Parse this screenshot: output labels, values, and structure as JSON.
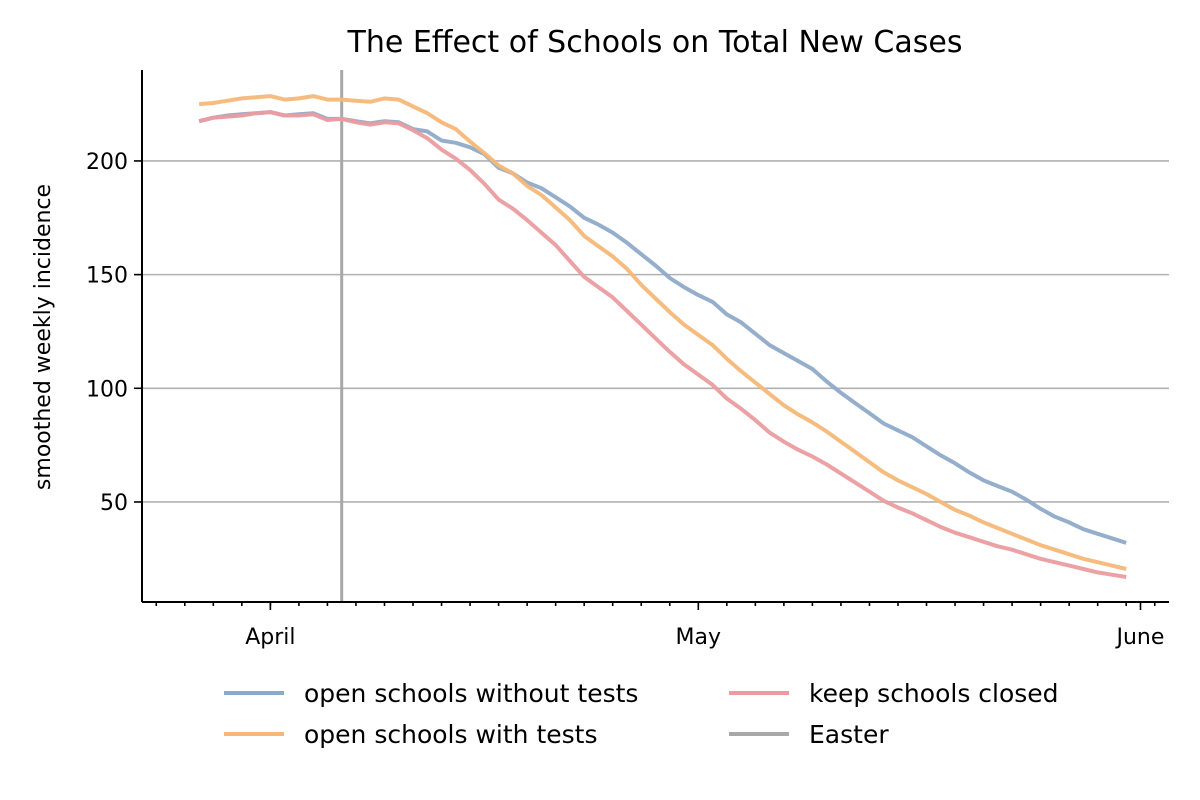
{
  "chart_data": {
    "type": "line",
    "title": "The Effect of Schools on Total New Cases",
    "xlabel": "",
    "ylabel": "smoothed weekly incidence",
    "x_ticks": [
      {
        "label": "April",
        "value": "2021-04-01"
      },
      {
        "label": "May",
        "value": "2021-05-01"
      },
      {
        "label": "June",
        "value": "2021-06-01"
      }
    ],
    "xlim": [
      "2021-03-23",
      "2021-06-03"
    ],
    "ylim": [
      6,
      240
    ],
    "yticks": [
      50,
      100,
      150,
      200
    ],
    "grid": "horizontal",
    "legend_position": "bottom",
    "x": [
      "2021-03-27",
      "2021-03-28",
      "2021-03-29",
      "2021-03-30",
      "2021-03-31",
      "2021-04-01",
      "2021-04-02",
      "2021-04-03",
      "2021-04-04",
      "2021-04-05",
      "2021-04-06",
      "2021-04-07",
      "2021-04-08",
      "2021-04-09",
      "2021-04-10",
      "2021-04-11",
      "2021-04-12",
      "2021-04-13",
      "2021-04-14",
      "2021-04-15",
      "2021-04-16",
      "2021-04-17",
      "2021-04-18",
      "2021-04-19",
      "2021-04-20",
      "2021-04-21",
      "2021-04-22",
      "2021-04-23",
      "2021-04-24",
      "2021-04-25",
      "2021-04-26",
      "2021-04-27",
      "2021-04-28",
      "2021-04-29",
      "2021-04-30",
      "2021-05-01",
      "2021-05-02",
      "2021-05-03",
      "2021-05-04",
      "2021-05-05",
      "2021-05-06",
      "2021-05-07",
      "2021-05-08",
      "2021-05-09",
      "2021-05-10",
      "2021-05-11",
      "2021-05-12",
      "2021-05-13",
      "2021-05-14",
      "2021-05-15",
      "2021-05-16",
      "2021-05-17",
      "2021-05-18",
      "2021-05-19",
      "2021-05-20",
      "2021-05-21",
      "2021-05-22",
      "2021-05-23",
      "2021-05-24",
      "2021-05-25",
      "2021-05-26",
      "2021-05-27",
      "2021-05-28",
      "2021-05-29",
      "2021-05-30",
      "2021-05-31"
    ],
    "series": [
      {
        "name": "open schools without tests",
        "color": "#8faac8",
        "values": [
          217.5,
          219,
          220,
          220.5,
          221,
          221.5,
          220,
          220.5,
          221,
          218.5,
          218.5,
          217.5,
          216.5,
          217.5,
          217,
          214,
          213,
          209,
          208,
          206,
          203,
          197,
          194.5,
          190.5,
          188,
          184,
          180,
          175,
          172,
          168.5,
          164,
          159,
          154,
          148.5,
          144.5,
          141,
          138,
          132.5,
          129,
          124,
          119,
          115.5,
          112,
          108.5,
          103,
          98,
          93.5,
          89,
          84.5,
          81.5,
          78.5,
          74.5,
          70.5,
          67,
          63,
          59.5,
          57,
          54.5,
          51,
          47,
          43.5,
          41,
          38,
          36,
          34,
          32
        ]
      },
      {
        "name": "open schools with tests",
        "color": "#f5b878",
        "values": [
          225,
          225.5,
          226.5,
          227.5,
          228,
          228.5,
          227,
          227.5,
          228.5,
          227,
          227,
          226.5,
          226,
          227.5,
          227,
          224,
          221,
          217,
          214,
          208.5,
          203.5,
          198,
          194.5,
          189,
          185,
          179.5,
          174,
          167,
          162.5,
          158,
          152.5,
          145.5,
          139.5,
          133.5,
          128,
          123.5,
          119,
          113,
          107.5,
          102.5,
          97.5,
          92.5,
          88.5,
          85,
          81,
          76.5,
          72,
          67.5,
          63,
          59.5,
          56.5,
          53.5,
          50,
          46.5,
          44,
          41,
          38.5,
          36,
          33.5,
          31,
          29,
          27,
          25,
          23.5,
          22,
          20.5
        ]
      },
      {
        "name": "keep schools closed",
        "color": "#eb9ca0",
        "values": [
          217.5,
          219,
          219.5,
          220,
          221,
          221.5,
          220,
          220,
          220.5,
          218,
          218.5,
          217,
          216,
          217,
          216.5,
          213.5,
          210,
          205,
          201,
          196,
          190,
          183,
          179,
          174,
          168.5,
          163,
          156,
          149,
          144.5,
          140,
          134,
          128,
          122,
          116,
          110.5,
          106,
          101.5,
          95.5,
          91,
          86,
          80.5,
          76.5,
          73,
          70,
          66.5,
          62.5,
          58.5,
          54.5,
          50.5,
          47.5,
          45,
          42,
          39,
          36.5,
          34.5,
          32.5,
          30.5,
          29,
          27,
          25,
          23.5,
          22,
          20.5,
          19,
          18,
          17
        ]
      }
    ],
    "vlines": [
      {
        "name": "Easter",
        "x": "2021-04-06",
        "color": "#a8a8a8"
      }
    ]
  }
}
